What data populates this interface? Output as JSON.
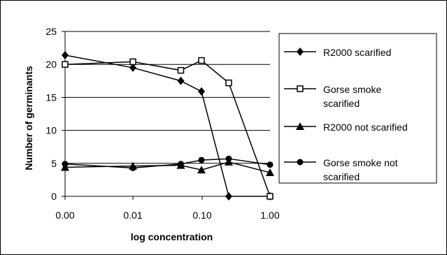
{
  "chart_data": {
    "type": "line",
    "xlabel": "log concentration",
    "ylabel": "Number of germinants",
    "ylim": [
      0,
      25
    ],
    "yticks": [
      0,
      5,
      10,
      15,
      20,
      25
    ],
    "grid": "horizontal",
    "legend_position": "right",
    "x_tick_labels": [
      "0.00",
      "0.01",
      "0.10",
      "1.00"
    ],
    "x": [
      0,
      0.01,
      0.05,
      0.1,
      0.25,
      1
    ],
    "series": [
      {
        "name_lines": [
          "R2000 scarified"
        ],
        "marker": "diamond",
        "values": [
          21.4,
          19.5,
          17.5,
          15.9,
          0,
          0
        ]
      },
      {
        "name_lines": [
          "Gorse smoke",
          "scarified"
        ],
        "marker": "square-open",
        "values": [
          20.0,
          20.4,
          19.1,
          20.6,
          17.2,
          0
        ]
      },
      {
        "name_lines": [
          "R2000 not scarified"
        ],
        "marker": "triangle",
        "values": [
          4.4,
          4.6,
          4.7,
          4.0,
          5.2,
          3.6
        ]
      },
      {
        "name_lines": [
          "Gorse smoke not",
          "scarified"
        ],
        "marker": "circle",
        "values": [
          4.9,
          4.3,
          4.9,
          5.5,
          5.7,
          4.8
        ]
      }
    ]
  }
}
